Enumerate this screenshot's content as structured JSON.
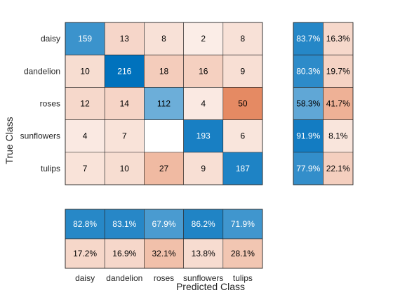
{
  "chart_data": {
    "type": "heatmap",
    "title": "",
    "xlabel": "Predicted Class",
    "ylabel": "True Class",
    "classes": [
      "daisy",
      "dandelion",
      "roses",
      "sunflowers",
      "tulips"
    ],
    "matrix": [
      [
        159,
        13,
        8,
        2,
        8
      ],
      [
        10,
        216,
        18,
        16,
        9
      ],
      [
        12,
        14,
        112,
        4,
        50
      ],
      [
        4,
        7,
        null,
        193,
        6
      ],
      [
        7,
        10,
        27,
        9,
        187
      ]
    ],
    "row_summary": {
      "correct": [
        "83.7%",
        "80.3%",
        "58.3%",
        "91.9%",
        "77.9%"
      ],
      "incorrect": [
        "16.3%",
        "19.7%",
        "41.7%",
        "8.1%",
        "22.1%"
      ]
    },
    "column_summary": {
      "correct": [
        "82.8%",
        "83.1%",
        "67.9%",
        "86.2%",
        "71.9%"
      ],
      "incorrect": [
        "17.2%",
        "16.9%",
        "32.1%",
        "13.8%",
        "28.1%"
      ]
    },
    "colors": {
      "correct_max": "#0072BD",
      "incorrect_max": "#D95319",
      "background": "#ffffff",
      "border": "#262626"
    }
  }
}
